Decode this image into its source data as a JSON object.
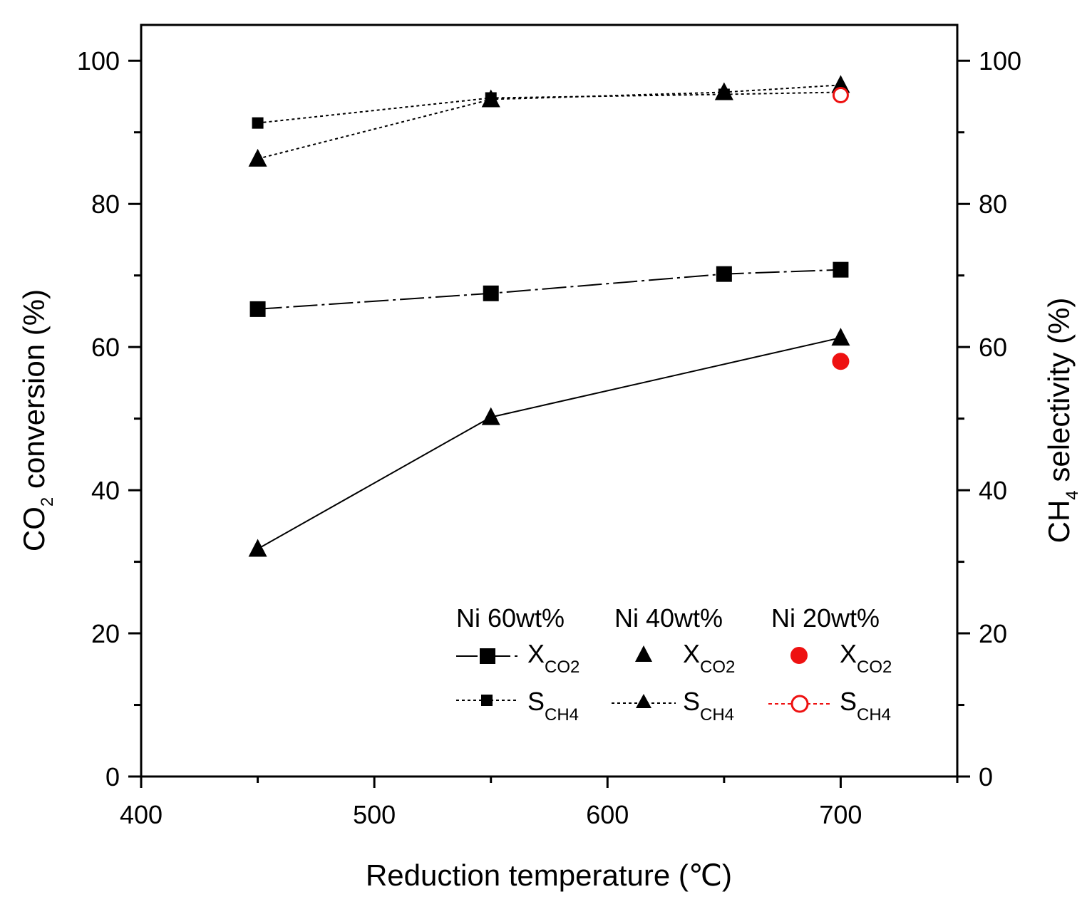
{
  "chart_data": {
    "type": "line",
    "x_axis": {
      "label_prefix": "Reduction temperature (",
      "label_unit": "℃",
      "label_suffix": ")",
      "range": [
        400,
        750
      ],
      "ticks": [
        400,
        500,
        600,
        700
      ],
      "tick_labels": [
        "400",
        "500",
        "600",
        "700"
      ]
    },
    "y_left_axis": {
      "label_main": "CO",
      "label_sub": "2",
      "label_rest": " conversion (%)",
      "range": [
        0,
        105
      ],
      "ticks": [
        0,
        20,
        40,
        60,
        80,
        100
      ],
      "tick_labels": [
        "0",
        "20",
        "40",
        "60",
        "80",
        "100"
      ]
    },
    "y_right_axis": {
      "label_main": "CH",
      "label_sub": "4",
      "label_rest": " selectivity (%)",
      "range": [
        0,
        105
      ],
      "ticks": [
        0,
        20,
        40,
        60,
        80,
        100
      ],
      "tick_labels": [
        "0",
        "20",
        "40",
        "60",
        "80",
        "100"
      ]
    },
    "series": [
      {
        "id": "ni60-x",
        "group": "Ni 60wt%",
        "name_main": "X",
        "name_sub": "CO2",
        "marker": "square",
        "filled": true,
        "color": "#000000",
        "line": "dashdot",
        "x": [
          450,
          550,
          650,
          700
        ],
        "y": [
          65.3,
          67.5,
          70.2,
          70.8
        ]
      },
      {
        "id": "ni60-s",
        "group": "Ni 60wt%",
        "name_main": "S",
        "name_sub": "CH4",
        "marker": "square-small",
        "filled": true,
        "color": "#000000",
        "line": "dotted",
        "x": [
          450,
          550,
          650,
          700
        ],
        "y": [
          91.3,
          94.8,
          95.3,
          95.6
        ]
      },
      {
        "id": "ni40-x",
        "group": "Ni 40wt%",
        "name_main": "X",
        "name_sub": "CO2",
        "marker": "triangle",
        "filled": true,
        "color": "#000000",
        "line": "solid",
        "x": [
          450,
          550,
          700
        ],
        "y": [
          31.8,
          50.2,
          61.3
        ]
      },
      {
        "id": "ni40-s",
        "group": "Ni 40wt%",
        "name_main": "S",
        "name_sub": "CH4",
        "marker": "triangle",
        "filled": true,
        "color": "#000000",
        "line": "dotted",
        "x": [
          450,
          550,
          650,
          700
        ],
        "y": [
          86.3,
          94.6,
          95.6,
          96.6
        ]
      },
      {
        "id": "ni20-x",
        "group": "Ni 20wt%",
        "name_main": "X",
        "name_sub": "CO2",
        "marker": "circle",
        "filled": true,
        "color": "#ee1111",
        "line": "none",
        "x": [
          700
        ],
        "y": [
          58.0
        ]
      },
      {
        "id": "ni20-s",
        "group": "Ni 20wt%",
        "name_main": "S",
        "name_sub": "CH4",
        "marker": "circle",
        "filled": false,
        "color": "#ee1111",
        "line": "dotted",
        "x": [
          700
        ],
        "y": [
          95.2
        ]
      }
    ],
    "legend": {
      "placement": "bottom-right",
      "groups": [
        {
          "title": "Ni 60wt%",
          "series": [
            "ni60-x",
            "ni60-s"
          ]
        },
        {
          "title": "Ni 40wt%",
          "series": [
            "ni40-x",
            "ni40-s"
          ]
        },
        {
          "title": "Ni 20wt%",
          "series": [
            "ni20-x",
            "ni20-s"
          ]
        }
      ]
    }
  }
}
